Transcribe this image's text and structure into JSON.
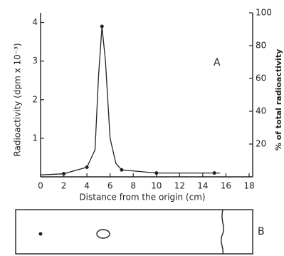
{
  "chart_data": {
    "type": "line",
    "x_label": "Distance from the origin (cm)",
    "y_label": "Radioactivity (dpm x 10⁻³)",
    "y2_label": "% of total radioactivity",
    "annotations": [
      "A",
      "B"
    ],
    "x": [
      0,
      2,
      4,
      4.7,
      5.0,
      5.3,
      5.6,
      6.0,
      6.5,
      7,
      10,
      15,
      15.5
    ],
    "values": [
      0.05,
      0.08,
      0.25,
      0.7,
      2.6,
      3.9,
      3.0,
      1.0,
      0.35,
      0.18,
      0.1,
      0.1,
      0.1
    ],
    "markers": {
      "x": [
        2,
        4,
        5.3,
        7,
        10,
        15
      ],
      "y": [
        0.08,
        0.25,
        3.9,
        0.18,
        0.1,
        0.1
      ]
    },
    "color": "#222222",
    "xlim": [
      0,
      18
    ],
    "xticks": [
      0,
      2,
      4,
      6,
      8,
      10,
      12,
      14,
      16,
      18
    ],
    "ylim": [
      0,
      4.25
    ],
    "yticks": [
      1,
      2,
      3,
      4
    ],
    "y2lim": [
      0,
      100
    ],
    "y2ticks": [
      20,
      40,
      60,
      80,
      100
    ]
  }
}
